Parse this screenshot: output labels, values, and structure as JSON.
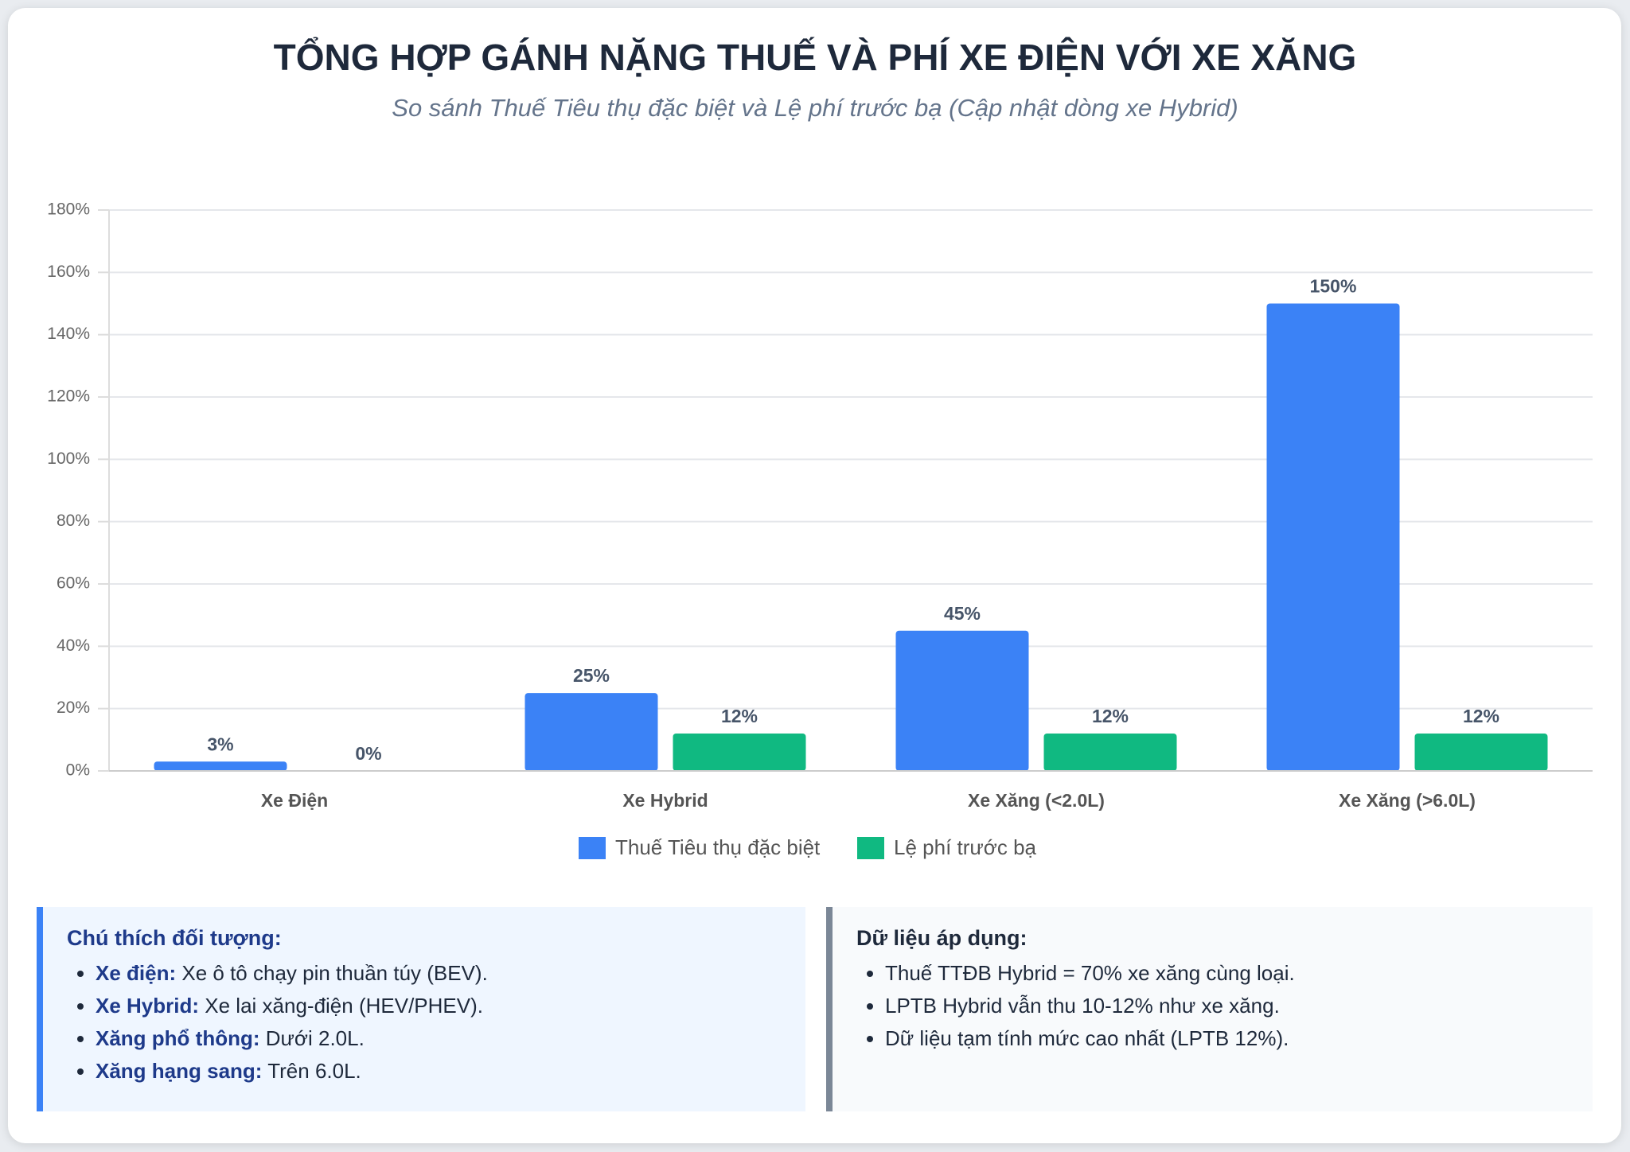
{
  "chart_data": {
    "type": "bar",
    "title": "TỔNG HỢP GÁNH NẶNG THUẾ VÀ PHÍ XE ĐIỆN VỚI XE XĂNG",
    "subtitle": "So sánh Thuế Tiêu thụ đặc biệt và Lệ phí trước bạ (Cập nhật dòng xe Hybrid)",
    "categories": [
      "Xe Điện",
      "Xe Hybrid",
      "Xe Xăng (<2.0L)",
      "Xe Xăng (>6.0L)"
    ],
    "series": [
      {
        "name": "Thuế Tiêu thụ đặc biệt",
        "color": "#3b82f6",
        "values": [
          3,
          25,
          45,
          150
        ],
        "value_labels": [
          "3%",
          "25%",
          "45%",
          "150%"
        ]
      },
      {
        "name": "Lệ phí trước bạ",
        "color": "#10b981",
        "values": [
          0,
          12,
          12,
          12
        ],
        "value_labels": [
          "0%",
          "12%",
          "12%",
          "12%"
        ]
      }
    ],
    "ylim": [
      0,
      180
    ],
    "yticks": [
      {
        "value": 0,
        "label": "0%"
      },
      {
        "value": 20,
        "label": "20%"
      },
      {
        "value": 40,
        "label": "40%"
      },
      {
        "value": 60,
        "label": "60%"
      },
      {
        "value": 80,
        "label": "80%"
      },
      {
        "value": 100,
        "label": "100%"
      },
      {
        "value": 120,
        "label": "120%"
      },
      {
        "value": 140,
        "label": "140%"
      },
      {
        "value": 160,
        "label": "160%"
      },
      {
        "value": 180,
        "label": "180%"
      }
    ],
    "grid": true,
    "legend": "bottom"
  },
  "notes": {
    "left": {
      "title": "Chú thích đối tượng:",
      "items": [
        {
          "term": "Xe điện:",
          "text": "Xe ô tô chạy pin thuần túy (BEV)."
        },
        {
          "term": "Xe Hybrid:",
          "text": "Xe lai xăng-điện (HEV/PHEV)."
        },
        {
          "term": "Xăng phổ thông:",
          "text": "Dưới 2.0L."
        },
        {
          "term": "Xăng hạng sang:",
          "text": "Trên 6.0L."
        }
      ]
    },
    "right": {
      "title": "Dữ liệu áp dụng:",
      "items": [
        "Thuế TTĐB Hybrid = 70% xe xăng cùng loại.",
        "LPTB Hybrid vẫn thu 10-12% như xe xăng.",
        "Dữ liệu tạm tính mức cao nhất (LPTB 12%)."
      ]
    }
  }
}
